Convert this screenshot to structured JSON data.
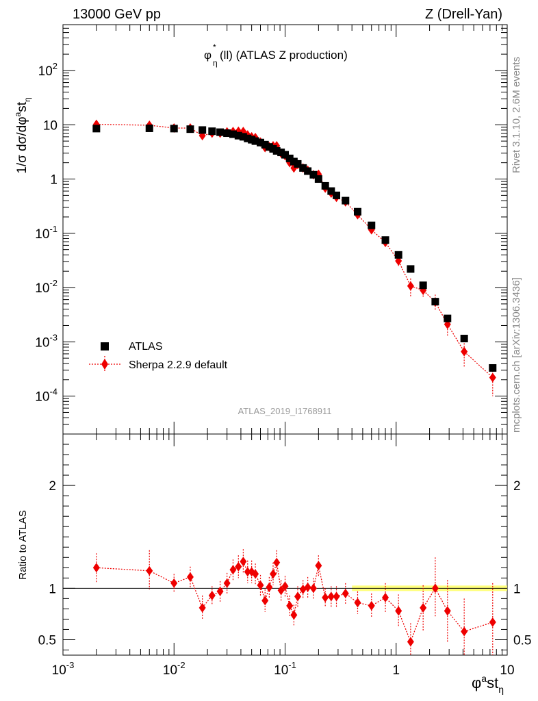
{
  "header": {
    "energy": "13000 GeV pp",
    "process": "Z (Drell-Yan)",
    "title_prefix": "φ",
    "title_sup": "*",
    "title_sub": "η",
    "title_rest": "(ll) (ATLAS Z production)",
    "analysis_id": "ATLAS_2019_I1768911"
  },
  "side_labels": {
    "rivet": "Rivet 3.1.10,  2.6M events",
    "mcplots": "mcplots.cern.ch [arXiv:1306.3436]"
  },
  "colors": {
    "data": "#000000",
    "mc": "#ee0000",
    "band": "#ffff66"
  },
  "chart_data": [
    {
      "type": "scatter",
      "panel": "main",
      "ylabel": "1/σ dσ/dφ^ast_η",
      "xscale": "log",
      "yscale": "log",
      "xlim": [
        0.001,
        10
      ],
      "ylim": [
        2e-05,
        700
      ],
      "x_ticks": [
        "10^-3",
        "10^-2",
        "10^-1",
        "1",
        "10"
      ],
      "y_ticks": [
        "10^-4",
        "10^-3",
        "10^-2",
        "10^-1",
        "1",
        "10",
        "10^2"
      ],
      "legend_position": "bottom-left",
      "series": [
        {
          "name": "ATLAS",
          "marker": "square",
          "x": [
            0.002,
            0.006,
            0.01,
            0.014,
            0.018,
            0.022,
            0.026,
            0.03,
            0.034,
            0.038,
            0.042,
            0.046,
            0.05,
            0.054,
            0.06,
            0.066,
            0.072,
            0.078,
            0.084,
            0.092,
            0.1,
            0.11,
            0.12,
            0.13,
            0.145,
            0.16,
            0.18,
            0.2,
            0.23,
            0.26,
            0.29,
            0.35,
            0.45,
            0.6,
            0.8,
            1.05,
            1.35,
            1.75,
            2.25,
            2.9,
            4.1,
            7.4
          ],
          "y": [
            8.5,
            8.6,
            8.5,
            8.3,
            8.0,
            7.6,
            7.3,
            7.0,
            6.7,
            6.3,
            6.0,
            5.6,
            5.3,
            5.0,
            4.7,
            4.3,
            3.9,
            3.6,
            3.3,
            3.1,
            2.8,
            2.4,
            2.1,
            1.9,
            1.6,
            1.4,
            1.2,
            1.0,
            0.75,
            0.6,
            0.5,
            0.4,
            0.25,
            0.14,
            0.075,
            0.04,
            0.022,
            0.011,
            0.0055,
            0.0027,
            0.00115,
            0.00033
          ]
        },
        {
          "name": "Sherpa 2.2.9 default",
          "marker": "diamond",
          "x": [
            0.002,
            0.006,
            0.01,
            0.014,
            0.018,
            0.022,
            0.026,
            0.03,
            0.034,
            0.038,
            0.042,
            0.046,
            0.05,
            0.054,
            0.06,
            0.066,
            0.072,
            0.078,
            0.084,
            0.092,
            0.1,
            0.11,
            0.12,
            0.13,
            0.145,
            0.16,
            0.18,
            0.2,
            0.23,
            0.26,
            0.29,
            0.35,
            0.45,
            0.6,
            0.8,
            1.05,
            1.35,
            1.75,
            2.25,
            2.9,
            4.1,
            7.4
          ],
          "y": [
            10.2,
            9.8,
            8.7,
            8.7,
            6.3,
            7.0,
            7.0,
            7.4,
            7.5,
            7.6,
            7.5,
            6.5,
            6.0,
            5.8,
            4.8,
            3.8,
            3.95,
            4.1,
            4.1,
            3.0,
            2.7,
            2.0,
            1.6,
            1.85,
            1.6,
            1.45,
            1.2,
            1.22,
            0.68,
            0.55,
            0.46,
            0.38,
            0.22,
            0.116,
            0.068,
            0.031,
            0.0107,
            0.0089,
            0.0054,
            0.0021,
            0.00066,
            0.00022
          ],
          "err_low": [
            1.2,
            1.5,
            0.8,
            0.8,
            1.0,
            0.7,
            0.7,
            0.7,
            0.7,
            0.7,
            0.7,
            0.6,
            0.6,
            0.5,
            0.5,
            0.5,
            0.4,
            0.4,
            0.4,
            0.3,
            0.3,
            0.25,
            0.2,
            0.2,
            0.15,
            0.15,
            0.12,
            0.12,
            0.07,
            0.06,
            0.05,
            0.04,
            0.025,
            0.015,
            0.009,
            0.006,
            0.004,
            0.0025,
            0.0015,
            0.0008,
            0.00032,
            0.00012
          ],
          "err_high": [
            1.2,
            1.6,
            0.8,
            0.8,
            1.0,
            0.7,
            0.7,
            0.7,
            0.7,
            0.7,
            0.7,
            0.6,
            0.6,
            0.5,
            0.5,
            0.5,
            0.4,
            0.4,
            0.4,
            0.3,
            0.3,
            0.25,
            0.2,
            0.2,
            0.15,
            0.15,
            0.12,
            0.12,
            0.07,
            0.06,
            0.05,
            0.04,
            0.025,
            0.015,
            0.009,
            0.006,
            0.004,
            0.0025,
            0.002,
            0.001,
            0.0004,
            0.00015
          ]
        }
      ]
    },
    {
      "type": "scatter",
      "panel": "ratio",
      "ylabel": "Ratio to ATLAS",
      "xlabel": "φ^ast_η",
      "xscale": "log",
      "xlim": [
        0.001,
        10
      ],
      "ylim": [
        0.35,
        2.5
      ],
      "y_ticks": [
        "0.5",
        "1",
        "2"
      ],
      "reference_line": 1,
      "series": [
        {
          "name": "Sherpa 2.2.9 default",
          "x": [
            0.002,
            0.006,
            0.01,
            0.014,
            0.018,
            0.022,
            0.026,
            0.03,
            0.034,
            0.038,
            0.042,
            0.046,
            0.05,
            0.054,
            0.06,
            0.066,
            0.072,
            0.078,
            0.084,
            0.092,
            0.1,
            0.11,
            0.12,
            0.13,
            0.145,
            0.16,
            0.18,
            0.2,
            0.23,
            0.26,
            0.29,
            0.35,
            0.45,
            0.6,
            0.8,
            1.05,
            1.35,
            1.75,
            2.25,
            2.9,
            4.1,
            7.4
          ],
          "y": [
            1.2,
            1.17,
            1.05,
            1.11,
            0.81,
            0.93,
            0.97,
            1.05,
            1.18,
            1.21,
            1.26,
            1.16,
            1.16,
            1.14,
            1.03,
            0.88,
            1.01,
            1.14,
            1.25,
            0.98,
            1.02,
            0.83,
            0.74,
            0.92,
            0.99,
            1.01,
            1.0,
            1.22,
            0.91,
            0.92,
            0.92,
            0.95,
            0.86,
            0.83,
            0.91,
            0.78,
            0.48,
            0.81,
            1.0,
            0.78,
            0.58,
            0.67
          ],
          "err_low": [
            0.14,
            0.18,
            0.09,
            0.1,
            0.12,
            0.09,
            0.1,
            0.1,
            0.1,
            0.11,
            0.12,
            0.11,
            0.11,
            0.1,
            0.1,
            0.11,
            0.1,
            0.11,
            0.12,
            0.1,
            0.1,
            0.1,
            0.1,
            0.1,
            0.09,
            0.1,
            0.1,
            0.1,
            0.09,
            0.1,
            0.1,
            0.1,
            0.11,
            0.12,
            0.14,
            0.16,
            0.18,
            0.22,
            0.28,
            0.3,
            0.3,
            0.35
          ],
          "err_high": [
            0.14,
            0.2,
            0.09,
            0.1,
            0.12,
            0.09,
            0.1,
            0.1,
            0.1,
            0.11,
            0.12,
            0.11,
            0.11,
            0.1,
            0.1,
            0.11,
            0.1,
            0.11,
            0.12,
            0.1,
            0.1,
            0.1,
            0.1,
            0.1,
            0.09,
            0.1,
            0.1,
            0.1,
            0.09,
            0.1,
            0.1,
            0.1,
            0.11,
            0.12,
            0.14,
            0.16,
            0.18,
            0.22,
            0.3,
            0.3,
            0.32,
            0.38
          ]
        }
      ]
    }
  ]
}
